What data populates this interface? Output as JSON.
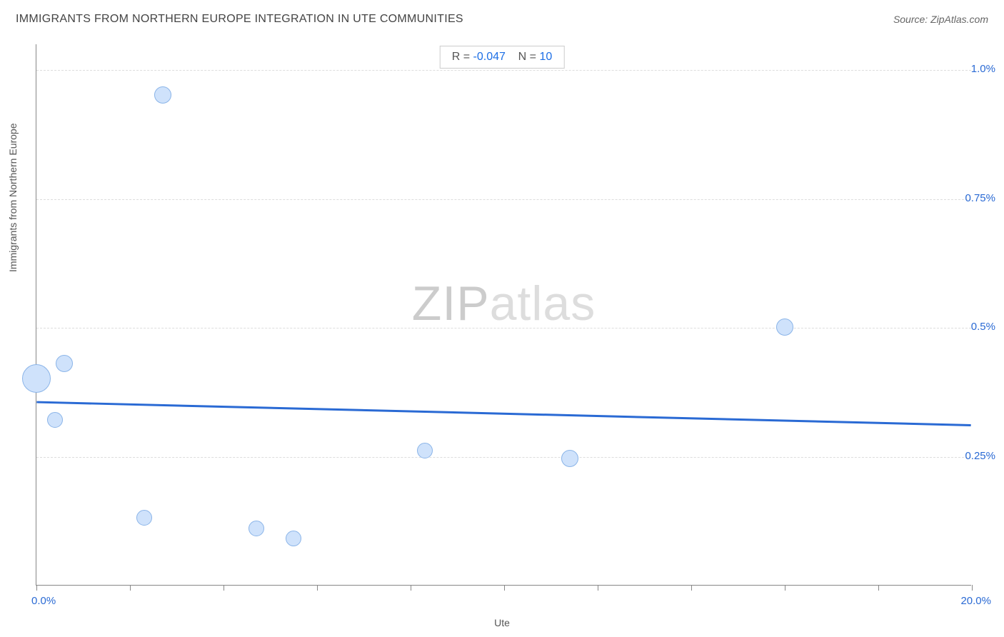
{
  "header": {
    "title": "IMMIGRANTS FROM NORTHERN EUROPE INTEGRATION IN UTE COMMUNITIES",
    "source": "Source: ZipAtlas.com"
  },
  "stats": {
    "r_label": "R =",
    "r_value": "-0.047",
    "n_label": "N =",
    "n_value": "10"
  },
  "axes": {
    "x_label": "Ute",
    "y_label": "Immigrants from Northern Europe",
    "x_min_label": "0.0%",
    "x_max_label": "20.0%",
    "y_tick_labels": [
      "0.25%",
      "0.5%",
      "0.75%",
      "1.0%"
    ]
  },
  "chart": {
    "type": "scatter",
    "xlim": [
      0,
      20
    ],
    "ylim": [
      0,
      1.05
    ],
    "x_ticks": [
      0,
      2,
      4,
      6,
      8,
      10,
      12,
      14,
      16,
      18,
      20
    ],
    "y_gridlines": [
      0.25,
      0.5,
      0.75,
      1.0
    ],
    "background_color": "#ffffff",
    "grid_color": "#dddddd",
    "axis_color": "#888888",
    "bubble_fill": "#cfe2fb",
    "bubble_stroke": "#8ab4e8",
    "trend_color": "#2a6ad4",
    "trend_width": 3,
    "trend_y_start": 0.355,
    "trend_y_end": 0.31,
    "points": [
      {
        "x": 0.0,
        "y": 0.4,
        "r": 20
      },
      {
        "x": 0.6,
        "y": 0.43,
        "r": 12
      },
      {
        "x": 0.4,
        "y": 0.32,
        "r": 11
      },
      {
        "x": 2.7,
        "y": 0.95,
        "r": 12
      },
      {
        "x": 2.3,
        "y": 0.13,
        "r": 11
      },
      {
        "x": 4.7,
        "y": 0.11,
        "r": 11
      },
      {
        "x": 5.5,
        "y": 0.09,
        "r": 11
      },
      {
        "x": 8.3,
        "y": 0.26,
        "r": 11
      },
      {
        "x": 11.4,
        "y": 0.245,
        "r": 12
      },
      {
        "x": 16.0,
        "y": 0.5,
        "r": 12
      }
    ]
  },
  "watermark": {
    "zip": "ZIP",
    "atlas": "atlas"
  }
}
